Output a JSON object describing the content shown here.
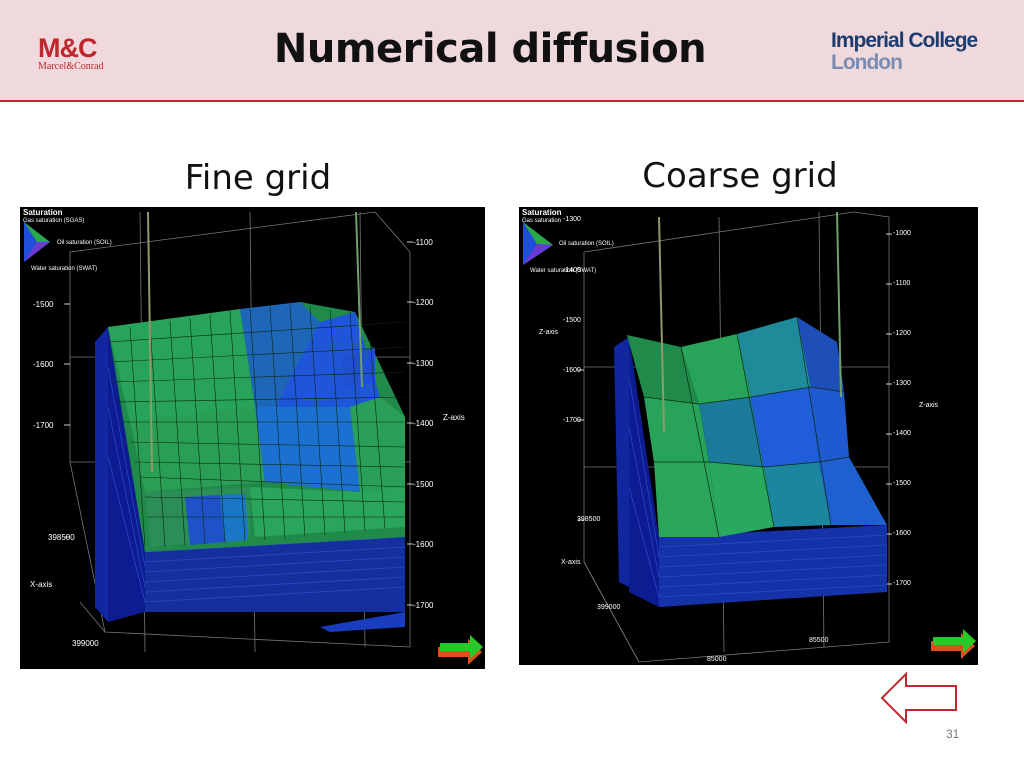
{
  "header": {
    "title": "Numerical diffusion",
    "logo_left": {
      "initials": "M&C",
      "name": "Marcel&Conrad"
    },
    "logo_right": {
      "line1": "Imperial College",
      "line2": "London"
    }
  },
  "fine": {
    "caption": "Fine grid",
    "legend": {
      "title": "Saturation",
      "gas": "Gas saturation (SGAS)",
      "oil": "Oil saturation (SOIL)",
      "water": "Water saturation (SWAT)"
    },
    "left_ticks": [
      "-1500",
      "-1600",
      "-1700",
      "398500",
      "X-axis",
      "399000"
    ],
    "right_ticks": [
      "-1100",
      "-1200",
      "-1300",
      "-1400",
      "Z-axis",
      "-1500",
      "-1600",
      "-1700"
    ]
  },
  "coarse": {
    "caption": "Coarse grid",
    "legend": {
      "title": "Saturation",
      "gas": "Gas saturation",
      "oil": "Oil saturation (SOIL)",
      "water": "Water saturation (SWAT)"
    },
    "left_ticks": [
      "-1300",
      "-1400",
      "-1500",
      "Z-axis",
      "-1600",
      "-1700",
      "398500",
      "X-axis",
      "399000"
    ],
    "right_ticks": [
      "-1000",
      "-1100",
      "-1200",
      "-1300",
      "Z-axis",
      "-1400",
      "-1500",
      "-1600",
      "-1700"
    ],
    "bottom_ticks": [
      "85500",
      "85000"
    ]
  },
  "slide": {
    "page_number": "31"
  },
  "colors": {
    "accent": "#c0272d",
    "header_bg": "#efd9dc",
    "panel_bg": "#000000",
    "gas": "#2aa84a",
    "water": "#1f4fd8"
  },
  "icons": {
    "nav_back": "left-arrow-icon",
    "view_axis": "axis-arrow-icon",
    "legend": "saturation-triangle-icon"
  }
}
